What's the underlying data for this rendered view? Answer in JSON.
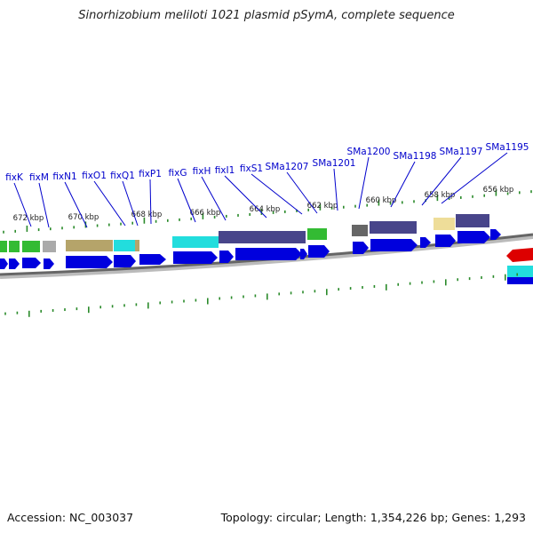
{
  "title": "Sinorhizobium meliloti 1021 plasmid pSymA, complete sequence",
  "footer": {
    "accession": "Accession: NC_003037",
    "topology": "Topology: circular; Length: 1,354,226 bp; Genes: 1,293"
  },
  "kbp_labels": [
    "672 kbp",
    "670 kbp",
    "668 kbp",
    "666 kbp",
    "664 kbp",
    "662 kbp",
    "660 kbp",
    "658 kbp",
    "656 kbp"
  ],
  "gene_labels": [
    "fixK",
    "fixM",
    "fixN1",
    "fixO1",
    "fixQ1",
    "fixP1",
    "fixG",
    "fixH",
    "fixI1",
    "fixS1",
    "SMa1207",
    "SMa1201",
    "SMa1200",
    "SMa1198",
    "SMa1197",
    "SMa1195"
  ],
  "colors": {
    "label": "#0000cc",
    "tick": "#2a8a2a",
    "cds": "#0000dd",
    "backbone": "#777777",
    "cyan": "#22dddd",
    "slate": "#48458a",
    "green": "#33bb33",
    "khaki": "#b5a46a",
    "pale": "#eedd99",
    "gray": "#666666",
    "red": "#dd0000"
  }
}
